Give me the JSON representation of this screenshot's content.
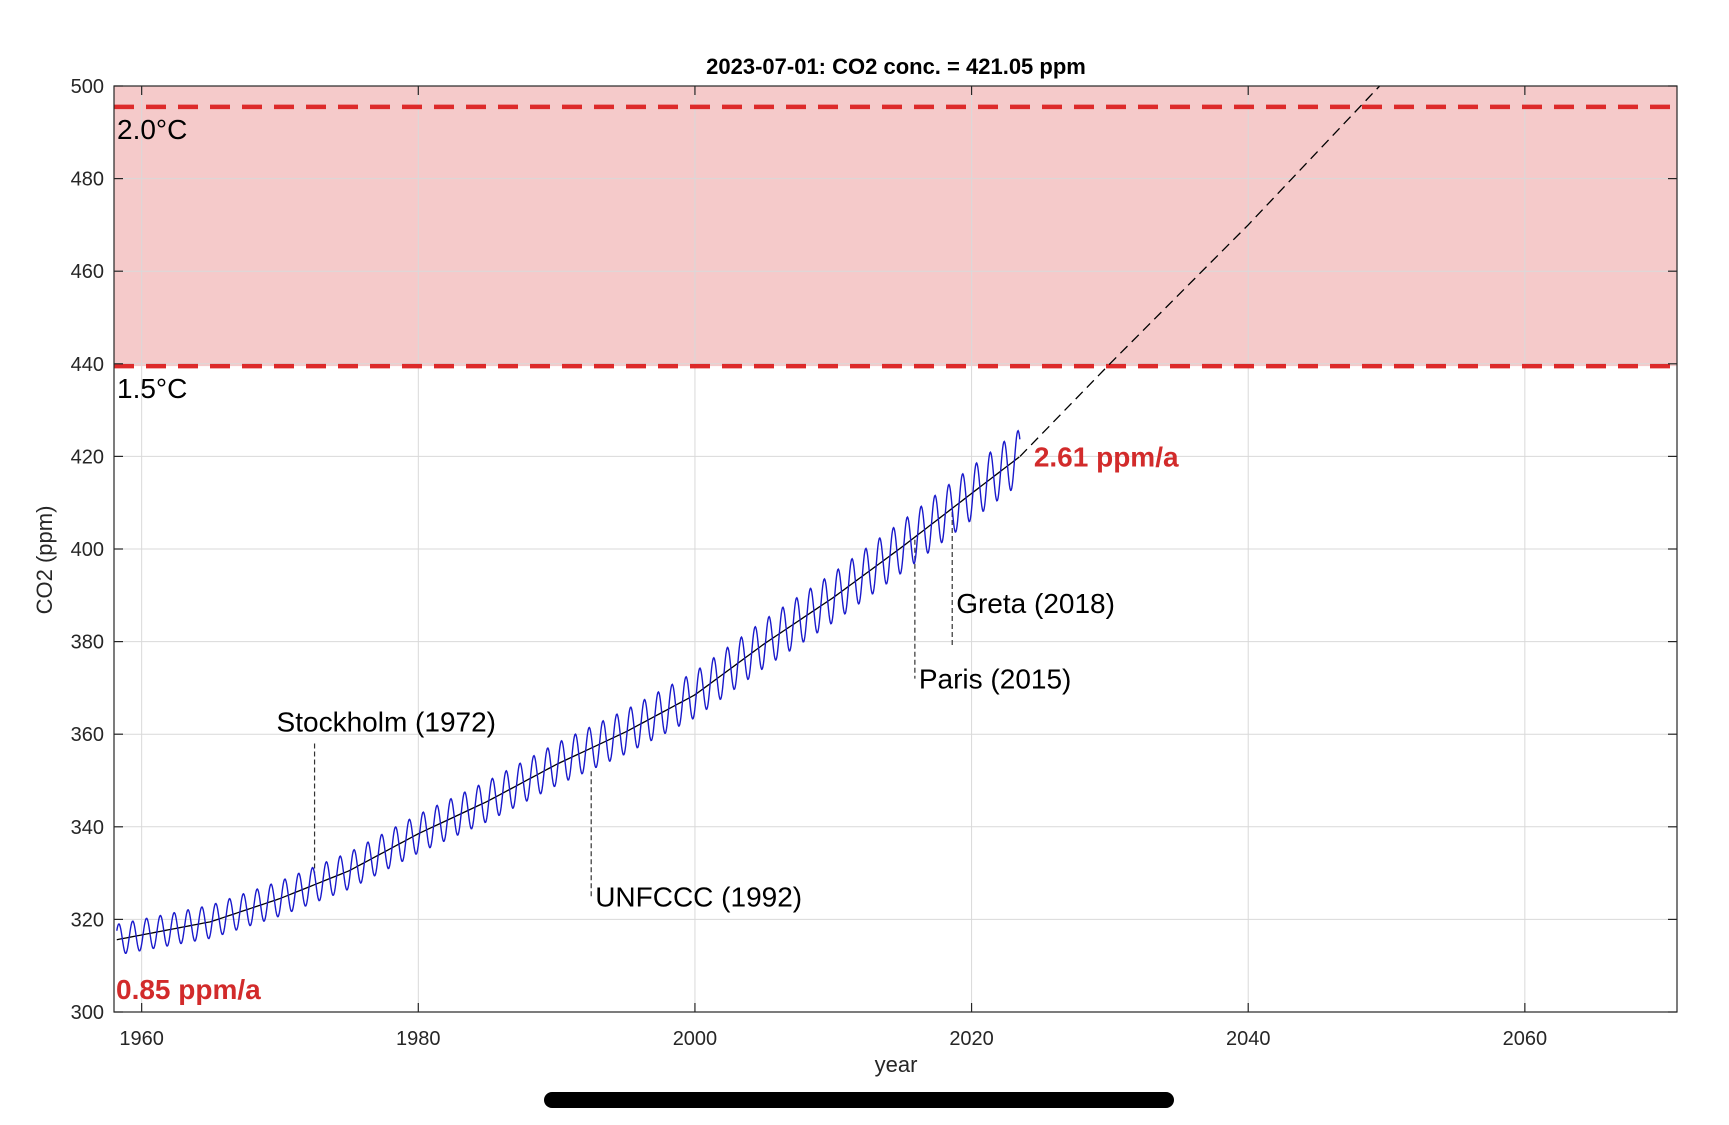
{
  "chart_data": {
    "type": "line",
    "title": "2023-07-01: CO2 conc. = 421.05 ppm",
    "xlabel": "year",
    "ylabel": "CO2 (ppm)",
    "xlim": [
      1958,
      2071
    ],
    "ylim": [
      300,
      500
    ],
    "xticks": [
      1960,
      1980,
      2000,
      2020,
      2040,
      2060
    ],
    "yticks": [
      300,
      320,
      340,
      360,
      380,
      400,
      420,
      440,
      460,
      480,
      500
    ],
    "grid": true,
    "colors": {
      "measured": "#1a1acc",
      "trend": "#000000",
      "band": "#f5caca",
      "threshold": "#dd2a2a",
      "rate_text": "#d22b2b",
      "event_line": "#333333"
    },
    "thresholds": [
      {
        "label": "2.0°C",
        "value": 495.5
      },
      {
        "label": "1.5°C",
        "value": 439.5
      }
    ],
    "band": [
      439.5,
      500
    ],
    "series": [
      {
        "style": "measured-monthly",
        "x_range": [
          1958.2,
          2023.5
        ],
        "seasonal_amplitude": 3.3,
        "trend_points": [
          {
            "x": 1958,
            "y": 315.5
          },
          {
            "x": 1965,
            "y": 319.5
          },
          {
            "x": 1970,
            "y": 324.5
          },
          {
            "x": 1975,
            "y": 330.5
          },
          {
            "x": 1980,
            "y": 338.5
          },
          {
            "x": 1985,
            "y": 345.5
          },
          {
            "x": 1990,
            "y": 353.5
          },
          {
            "x": 1995,
            "y": 360.5
          },
          {
            "x": 2000,
            "y": 368.5
          },
          {
            "x": 2005,
            "y": 379.5
          },
          {
            "x": 2010,
            "y": 389.5
          },
          {
            "x": 2015,
            "y": 400.5
          },
          {
            "x": 2020,
            "y": 412
          },
          {
            "x": 2023.5,
            "y": 420
          }
        ]
      },
      {
        "style": "projection-dashed",
        "points": [
          {
            "x": 2023.5,
            "y": 420
          },
          {
            "x": 2030,
            "y": 440
          },
          {
            "x": 2040,
            "y": 470
          },
          {
            "x": 2049.5,
            "y": 500
          }
        ]
      }
    ],
    "events": [
      {
        "label": "Stockholm (1972)",
        "year": 1972.5,
        "y_from": 358,
        "y_to": 330
      },
      {
        "label": "UNFCCC (1992)",
        "year": 1992.5,
        "y_from": 352,
        "y_to": 325
      },
      {
        "label": "Paris (2015)",
        "year": 2015.9,
        "y_from": 402,
        "y_to": 372
      },
      {
        "label": "Greta (2018)",
        "year": 2018.6,
        "y_from": 408,
        "y_to": 379
      }
    ],
    "rates": [
      {
        "label": "0.85 ppm/a",
        "position": "bottom-left"
      },
      {
        "label": "2.61 ppm/a",
        "position": "end-of-series"
      }
    ]
  }
}
